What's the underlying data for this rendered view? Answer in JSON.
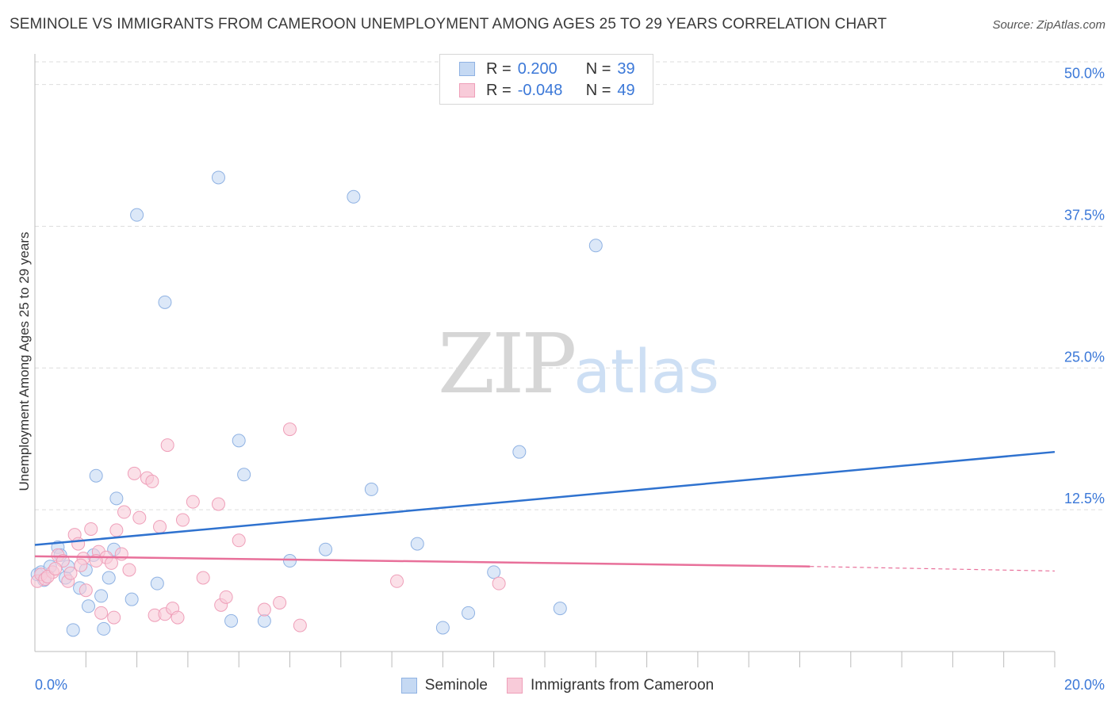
{
  "title": "SEMINOLE VS IMMIGRANTS FROM CAMEROON UNEMPLOYMENT AMONG AGES 25 TO 29 YEARS CORRELATION CHART",
  "source": "Source: ZipAtlas.com",
  "watermark": {
    "zip": "ZIP",
    "atlas": "atlas"
  },
  "legend_top": [
    {
      "label_r": "R =",
      "r": "0.200",
      "label_n": "N =",
      "n": "39"
    },
    {
      "label_r": "R =",
      "r": "-0.048",
      "label_n": "N =",
      "n": "49"
    }
  ],
  "legend_bottom": [
    "Seminole",
    "Immigrants from Cameroon"
  ],
  "colors": {
    "seminole_fill": "#c5d9f3",
    "seminole_stroke": "#8fb2e3",
    "seminole_line": "#2f72cf",
    "cameroon_fill": "#f8cbd9",
    "cameroon_stroke": "#ef9fb9",
    "cameroon_line": "#e8709a",
    "axis_text": "#3b78d8",
    "grid": "#dddddd"
  },
  "chart_data": {
    "type": "scatter",
    "title": "SEMINOLE VS IMMIGRANTS FROM CAMEROON UNEMPLOYMENT AMONG AGES 25 TO 29 YEARS CORRELATION CHART",
    "xlabel": "",
    "ylabel": "Unemployment Among Ages 25 to 29 years",
    "xlim": [
      0,
      20
    ],
    "ylim": [
      0,
      52
    ],
    "x_tick_labels": [
      {
        "value": 0,
        "label": "0.0%"
      },
      {
        "value": 20,
        "label": "20.0%"
      }
    ],
    "y_tick_labels": [
      {
        "value": 12.5,
        "label": "12.5%"
      },
      {
        "value": 25,
        "label": "25.0%"
      },
      {
        "value": 37.5,
        "label": "37.5%"
      },
      {
        "value": 50,
        "label": "50.0%"
      }
    ],
    "grid": true,
    "legend_position": "top-center",
    "series": [
      {
        "name": "Seminole",
        "R": 0.2,
        "N": 39,
        "points": [
          [
            0.05,
            6.8
          ],
          [
            0.12,
            7.0
          ],
          [
            0.18,
            6.3
          ],
          [
            0.3,
            7.5
          ],
          [
            0.45,
            9.2
          ],
          [
            0.5,
            8.5
          ],
          [
            0.6,
            6.5
          ],
          [
            0.65,
            7.5
          ],
          [
            0.75,
            1.9
          ],
          [
            0.88,
            5.6
          ],
          [
            1.0,
            7.2
          ],
          [
            1.05,
            4.0
          ],
          [
            1.15,
            8.5
          ],
          [
            1.3,
            4.9
          ],
          [
            1.35,
            2.0
          ],
          [
            1.45,
            6.5
          ],
          [
            1.55,
            9.0
          ],
          [
            1.6,
            13.5
          ],
          [
            1.2,
            15.5
          ],
          [
            1.9,
            4.6
          ],
          [
            2.0,
            38.5
          ],
          [
            2.4,
            6.0
          ],
          [
            2.55,
            30.8
          ],
          [
            3.6,
            41.8
          ],
          [
            3.85,
            2.7
          ],
          [
            4.0,
            18.6
          ],
          [
            4.1,
            15.6
          ],
          [
            4.5,
            2.7
          ],
          [
            5.0,
            8.0
          ],
          [
            5.7,
            9.0
          ],
          [
            6.25,
            40.1
          ],
          [
            6.6,
            14.3
          ],
          [
            7.5,
            9.5
          ],
          [
            8.0,
            2.1
          ],
          [
            8.5,
            3.4
          ],
          [
            9.0,
            7.0
          ],
          [
            9.5,
            17.6
          ],
          [
            10.3,
            3.8
          ],
          [
            11.0,
            35.8
          ]
        ],
        "trend": {
          "x": [
            0,
            20
          ],
          "y": [
            9.4,
            17.6
          ]
        }
      },
      {
        "name": "Immigrants from Cameroon",
        "R": -0.048,
        "N": 49,
        "points": [
          [
            0.05,
            6.2
          ],
          [
            0.12,
            6.8
          ],
          [
            0.2,
            6.4
          ],
          [
            0.35,
            7.0
          ],
          [
            0.45,
            8.5
          ],
          [
            0.55,
            8.0
          ],
          [
            0.65,
            6.2
          ],
          [
            0.78,
            10.3
          ],
          [
            0.85,
            9.5
          ],
          [
            0.95,
            8.2
          ],
          [
            1.0,
            5.4
          ],
          [
            1.1,
            10.8
          ],
          [
            1.25,
            8.8
          ],
          [
            1.3,
            3.4
          ],
          [
            1.4,
            8.3
          ],
          [
            1.5,
            7.8
          ],
          [
            1.55,
            3.0
          ],
          [
            1.6,
            10.7
          ],
          [
            1.7,
            8.6
          ],
          [
            1.75,
            12.3
          ],
          [
            1.85,
            7.2
          ],
          [
            1.95,
            15.7
          ],
          [
            2.05,
            11.8
          ],
          [
            2.2,
            15.3
          ],
          [
            2.3,
            15.0
          ],
          [
            2.35,
            3.2
          ],
          [
            2.45,
            11.0
          ],
          [
            2.55,
            3.3
          ],
          [
            2.6,
            18.2
          ],
          [
            2.7,
            3.8
          ],
          [
            2.8,
            3.0
          ],
          [
            2.9,
            11.6
          ],
          [
            3.1,
            13.2
          ],
          [
            3.3,
            6.5
          ],
          [
            3.6,
            13.0
          ],
          [
            3.65,
            4.1
          ],
          [
            3.75,
            4.8
          ],
          [
            4.0,
            9.8
          ],
          [
            4.5,
            3.7
          ],
          [
            4.8,
            4.3
          ],
          [
            5.0,
            19.6
          ],
          [
            5.2,
            2.3
          ],
          [
            7.1,
            6.2
          ],
          [
            9.1,
            6.0
          ],
          [
            0.25,
            6.6
          ],
          [
            0.4,
            7.3
          ],
          [
            1.2,
            8.0
          ],
          [
            0.7,
            6.9
          ],
          [
            0.9,
            7.6
          ]
        ],
        "trend": {
          "x": [
            0,
            15.2
          ],
          "y": [
            8.4,
            7.5
          ]
        },
        "trend_dashed": {
          "x": [
            15.2,
            20
          ],
          "y": [
            7.5,
            7.1
          ]
        }
      }
    ]
  }
}
